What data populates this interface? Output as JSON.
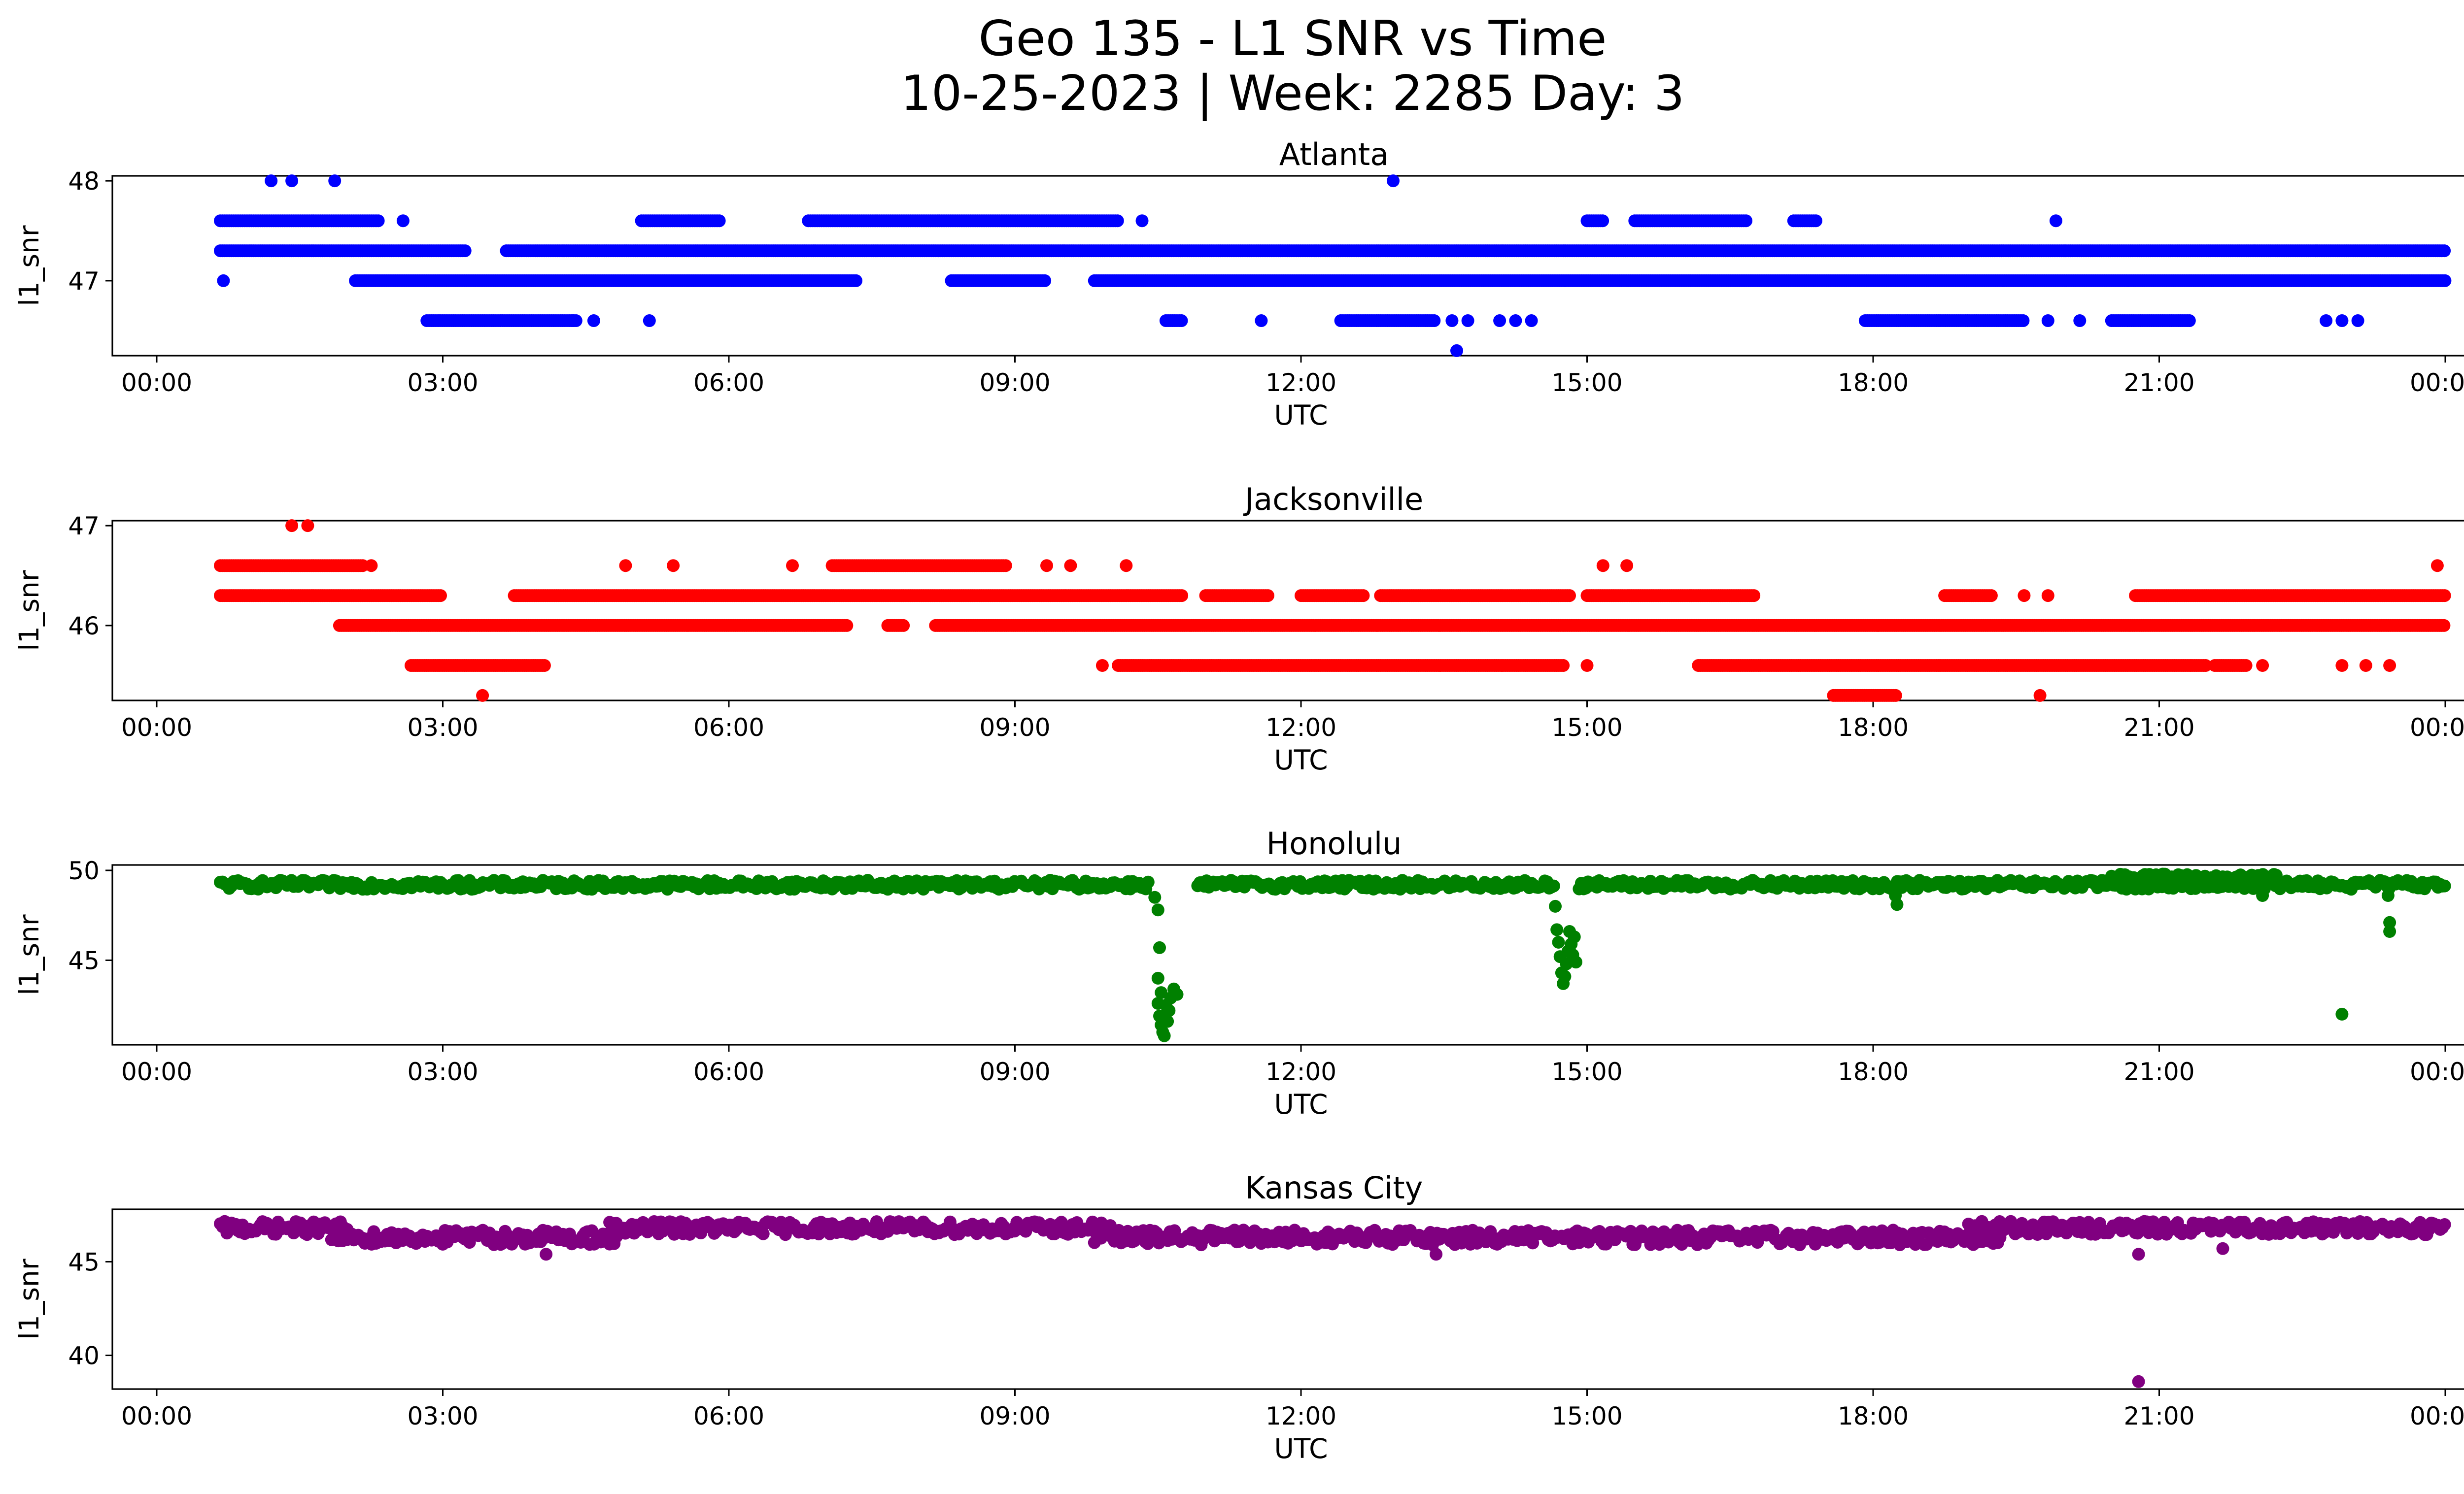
{
  "figure": {
    "title_line1": "Geo 135 - L1 SNR vs Time",
    "title_line2": "10-25-2023 | Week: 2285 Day: 3"
  },
  "chart_data": [
    {
      "type": "scatter",
      "title": "Atlanta",
      "xlabel": "UTC",
      "ylabel": "l1_snr",
      "color": "#0000ff",
      "xlim": [
        "00:00",
        "24:00"
      ],
      "x_ticks": [
        "00:00",
        "03:00",
        "06:00",
        "09:00",
        "12:00",
        "15:00",
        "18:00",
        "21:00",
        "00:00"
      ],
      "y_ticks": [
        47,
        48
      ],
      "ylim": [
        46.25,
        48.05
      ],
      "bands": [
        {
          "y": 47.3,
          "segments": [
            [
              "00:40",
              "03:15"
            ],
            [
              "03:40",
              "24:00"
            ]
          ]
        },
        {
          "y": 47.0,
          "segments": [
            [
              "02:05",
              "07:20"
            ],
            [
              "08:20",
              "09:20"
            ],
            [
              "09:50",
              "24:00"
            ]
          ]
        },
        {
          "y": 47.6,
          "segments": [
            [
              "00:40",
              "02:20"
            ],
            [
              "05:05",
              "05:55"
            ],
            [
              "06:50",
              "10:05"
            ],
            [
              "15:00",
              "15:10"
            ],
            [
              "15:30",
              "16:40"
            ],
            [
              "17:10",
              "17:25"
            ]
          ]
        },
        {
          "y": 46.6,
          "segments": [
            [
              "02:50",
              "04:25"
            ],
            [
              "10:35",
              "10:45"
            ],
            [
              "12:25",
              "13:25"
            ],
            [
              "17:55",
              "19:35"
            ],
            [
              "20:30",
              "21:20"
            ]
          ]
        }
      ],
      "points": [
        {
          "x": "00:42",
          "y": 47.0
        },
        {
          "x": "01:12",
          "y": 48.0
        },
        {
          "x": "01:25",
          "y": 48.0
        },
        {
          "x": "01:52",
          "y": 48.0
        },
        {
          "x": "02:35",
          "y": 47.6
        },
        {
          "x": "04:22",
          "y": 46.6
        },
        {
          "x": "04:35",
          "y": 46.6
        },
        {
          "x": "05:10",
          "y": 46.6
        },
        {
          "x": "10:20",
          "y": 47.6
        },
        {
          "x": "11:35",
          "y": 46.6
        },
        {
          "x": "12:58",
          "y": 48.0
        },
        {
          "x": "13:38",
          "y": 46.3
        },
        {
          "x": "13:35",
          "y": 46.6
        },
        {
          "x": "13:45",
          "y": 46.6
        },
        {
          "x": "14:05",
          "y": 46.6
        },
        {
          "x": "14:15",
          "y": 46.6
        },
        {
          "x": "14:25",
          "y": 46.6
        },
        {
          "x": "19:50",
          "y": 46.6
        },
        {
          "x": "19:55",
          "y": 47.6
        },
        {
          "x": "20:10",
          "y": 46.6
        },
        {
          "x": "22:45",
          "y": 46.6
        },
        {
          "x": "22:55",
          "y": 46.6
        },
        {
          "x": "23:05",
          "y": 46.6
        }
      ]
    },
    {
      "type": "scatter",
      "title": "Jacksonville",
      "xlabel": "UTC",
      "ylabel": "l1_snr",
      "color": "#ff0000",
      "xlim": [
        "00:00",
        "24:00"
      ],
      "x_ticks": [
        "00:00",
        "03:00",
        "06:00",
        "09:00",
        "12:00",
        "15:00",
        "18:00",
        "21:00",
        "00:00"
      ],
      "y_ticks": [
        46,
        47
      ],
      "ylim": [
        45.25,
        47.05
      ],
      "bands": [
        {
          "y": 46.3,
          "segments": [
            [
              "00:40",
              "03:00"
            ],
            [
              "03:45",
              "10:45"
            ],
            [
              "11:00",
              "11:40"
            ],
            [
              "12:00",
              "12:40"
            ],
            [
              "12:50",
              "14:50"
            ],
            [
              "15:00",
              "16:45"
            ],
            [
              "18:45",
              "19:15"
            ],
            [
              "20:45",
              "24:00"
            ]
          ]
        },
        {
          "y": 46.0,
          "segments": [
            [
              "01:55",
              "07:15"
            ],
            [
              "07:40",
              "07:50"
            ],
            [
              "08:10",
              "24:00"
            ]
          ]
        },
        {
          "y": 46.6,
          "segments": [
            [
              "00:40",
              "02:10"
            ],
            [
              "07:05",
              "08:55"
            ]
          ]
        },
        {
          "y": 45.6,
          "segments": [
            [
              "02:40",
              "04:05"
            ],
            [
              "10:05",
              "14:45"
            ],
            [
              "16:10",
              "21:30"
            ],
            [
              "21:35",
              "21:55"
            ]
          ]
        },
        {
          "y": 45.3,
          "segments": [
            [
              "17:35",
              "18:15"
            ]
          ]
        }
      ],
      "points": [
        {
          "x": "01:25",
          "y": 47.0
        },
        {
          "x": "01:35",
          "y": 47.0
        },
        {
          "x": "02:15",
          "y": 46.6
        },
        {
          "x": "03:25",
          "y": 45.3
        },
        {
          "x": "04:55",
          "y": 46.6
        },
        {
          "x": "05:25",
          "y": 46.6
        },
        {
          "x": "06:40",
          "y": 46.6
        },
        {
          "x": "09:20",
          "y": 46.6
        },
        {
          "x": "09:35",
          "y": 46.6
        },
        {
          "x": "10:10",
          "y": 46.6
        },
        {
          "x": "09:55",
          "y": 45.6
        },
        {
          "x": "15:10",
          "y": 46.6
        },
        {
          "x": "15:25",
          "y": 46.6
        },
        {
          "x": "15:00",
          "y": 45.6
        },
        {
          "x": "19:45",
          "y": 45.3
        },
        {
          "x": "19:35",
          "y": 46.3
        },
        {
          "x": "19:50",
          "y": 46.3
        },
        {
          "x": "22:05",
          "y": 45.6
        },
        {
          "x": "22:55",
          "y": 45.6
        },
        {
          "x": "23:10",
          "y": 45.6
        },
        {
          "x": "23:25",
          "y": 45.6
        },
        {
          "x": "23:55",
          "y": 46.6
        }
      ]
    },
    {
      "type": "scatter",
      "title": "Honolulu",
      "xlabel": "UTC",
      "ylabel": "l1_snr",
      "color": "#008000",
      "xlim": [
        "00:00",
        "24:00"
      ],
      "x_ticks": [
        "00:00",
        "03:00",
        "06:00",
        "09:00",
        "12:00",
        "15:00",
        "18:00",
        "21:00",
        "00:00"
      ],
      "y_ticks": [
        45,
        50
      ],
      "ylim": [
        40.3,
        50.3
      ],
      "bands": [
        {
          "y": 49.2,
          "spread": 0.5,
          "segments": [
            [
              "00:40",
              "10:25"
            ],
            [
              "10:55",
              "14:40"
            ],
            [
              "14:55",
              "24:00"
            ]
          ]
        },
        {
          "y": 49.6,
          "spread": 0.4,
          "segments": [
            [
              "20:30",
              "22:15"
            ]
          ]
        }
      ],
      "points": [
        {
          "x": "10:28",
          "y": 48.5
        },
        {
          "x": "10:30",
          "y": 47.8
        },
        {
          "x": "10:31",
          "y": 45.7
        },
        {
          "x": "10:30",
          "y": 44.0
        },
        {
          "x": "10:32",
          "y": 43.2
        },
        {
          "x": "10:30",
          "y": 42.6
        },
        {
          "x": "10:31",
          "y": 41.9
        },
        {
          "x": "10:32",
          "y": 41.4
        },
        {
          "x": "10:33",
          "y": 41.0
        },
        {
          "x": "10:34",
          "y": 40.8
        },
        {
          "x": "10:36",
          "y": 41.6
        },
        {
          "x": "10:37",
          "y": 42.2
        },
        {
          "x": "10:38",
          "y": 42.9
        },
        {
          "x": "10:40",
          "y": 43.4
        },
        {
          "x": "10:42",
          "y": 43.1
        },
        {
          "x": "10:35",
          "y": 42.5
        },
        {
          "x": "14:40",
          "y": 48.0
        },
        {
          "x": "14:41",
          "y": 46.7
        },
        {
          "x": "14:42",
          "y": 46.0
        },
        {
          "x": "14:43",
          "y": 45.2
        },
        {
          "x": "14:44",
          "y": 44.3
        },
        {
          "x": "14:45",
          "y": 43.7
        },
        {
          "x": "14:46",
          "y": 44.1
        },
        {
          "x": "14:47",
          "y": 44.8
        },
        {
          "x": "14:48",
          "y": 45.5
        },
        {
          "x": "14:49",
          "y": 46.6
        },
        {
          "x": "14:50",
          "y": 45.9
        },
        {
          "x": "14:52",
          "y": 46.3
        },
        {
          "x": "14:51",
          "y": 45.3
        },
        {
          "x": "14:53",
          "y": 44.9
        },
        {
          "x": "18:15",
          "y": 48.1
        },
        {
          "x": "18:14",
          "y": 48.6
        },
        {
          "x": "22:05",
          "y": 48.6
        },
        {
          "x": "22:55",
          "y": 42.0
        },
        {
          "x": "23:25",
          "y": 46.6
        },
        {
          "x": "23:25",
          "y": 47.1
        },
        {
          "x": "23:24",
          "y": 48.6
        }
      ]
    },
    {
      "type": "scatter",
      "title": "Kansas City",
      "xlabel": "UTC",
      "ylabel": "l1_snr",
      "color": "#800080",
      "xlim": [
        "00:00",
        "24:00"
      ],
      "x_ticks": [
        "00:00",
        "03:00",
        "06:00",
        "09:00",
        "12:00",
        "15:00",
        "18:00",
        "21:00",
        "00:00"
      ],
      "y_ticks": [
        40,
        45
      ],
      "ylim": [
        38.2,
        47.8
      ],
      "bands": [
        {
          "y": 46.8,
          "spread": 0.7,
          "segments": [
            [
              "00:40",
              "02:00"
            ],
            [
              "04:45",
              "10:00"
            ],
            [
              "19:00",
              "24:00"
            ]
          ]
        },
        {
          "y": 46.3,
          "spread": 0.8,
          "segments": [
            [
              "01:50",
              "04:50"
            ],
            [
              "09:50",
              "19:20"
            ]
          ]
        }
      ],
      "points": [
        {
          "x": "20:47",
          "y": 45.4
        },
        {
          "x": "20:47",
          "y": 38.6
        },
        {
          "x": "04:05",
          "y": 45.4
        },
        {
          "x": "13:25",
          "y": 45.4
        },
        {
          "x": "21:40",
          "y": 45.7
        }
      ]
    }
  ]
}
